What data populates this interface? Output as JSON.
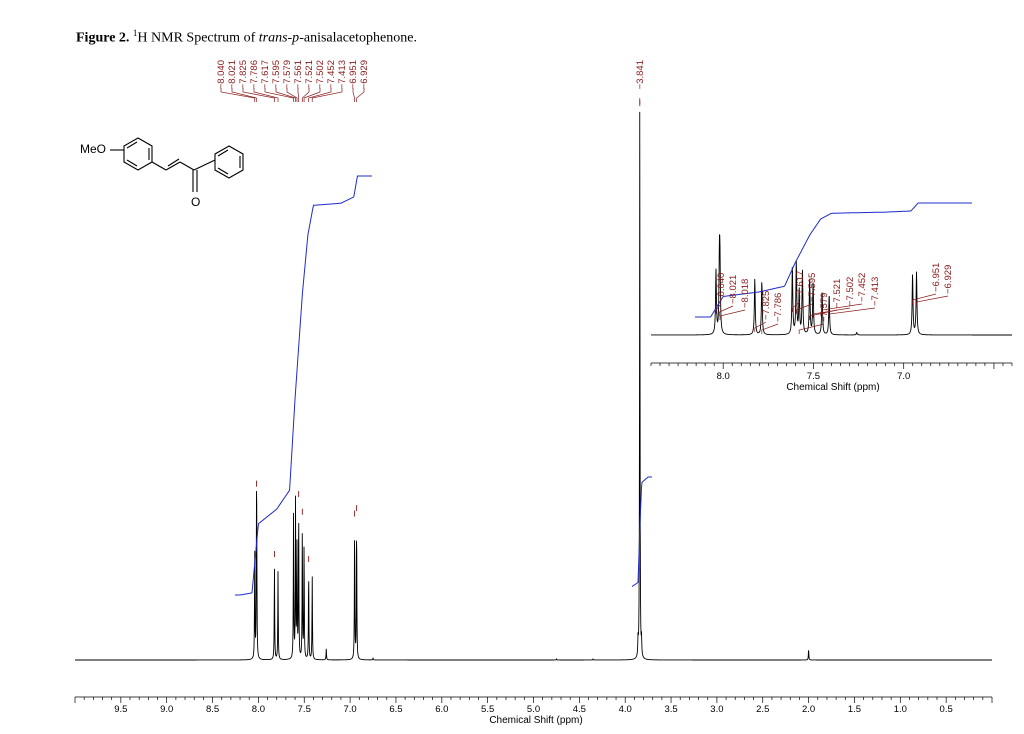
{
  "figure": {
    "label": "Figure 2.",
    "superscript": "1",
    "text_before_italic": "H NMR Spectrum of ",
    "italic_text": "trans-p",
    "text_after_italic": "-anisalacetophenone."
  },
  "structure": {
    "substituent_label": "MeO",
    "carbonyl_label": "O"
  },
  "chart_data": [
    {
      "type": "line",
      "name": "main-spectrum",
      "xlabel": "Chemical Shift (ppm)",
      "ylabel": "",
      "xlim": [
        10.0,
        0.0
      ],
      "x_reversed": true,
      "tick_labels": [
        "9.5",
        "9.0",
        "8.5",
        "8.0",
        "7.5",
        "7.0",
        "6.5",
        "6.0",
        "5.5",
        "5.0",
        "4.5",
        "4.0",
        "3.5",
        "3.0",
        "2.5",
        "2.0",
        "1.5",
        "1.0",
        "0.5"
      ],
      "peak_labels": [
        "8.040",
        "8.021",
        "7.825",
        "7.786",
        "7.617",
        "7.595",
        "7.579",
        "7.561",
        "7.521",
        "7.502",
        "7.452",
        "7.413",
        "6.951",
        "6.929",
        "3.841"
      ],
      "peaks": [
        {
          "ppm": 8.04,
          "intensity": 0.19
        },
        {
          "ppm": 8.021,
          "intensity": 0.21
        },
        {
          "ppm": 8.018,
          "intensity": 0.18
        },
        {
          "ppm": 7.825,
          "intensity": 0.17
        },
        {
          "ppm": 7.786,
          "intensity": 0.16
        },
        {
          "ppm": 7.617,
          "intensity": 0.26
        },
        {
          "ppm": 7.595,
          "intensity": 0.29
        },
        {
          "ppm": 7.579,
          "intensity": 0.2
        },
        {
          "ppm": 7.561,
          "intensity": 0.27
        },
        {
          "ppm": 7.521,
          "intensity": 0.24
        },
        {
          "ppm": 7.502,
          "intensity": 0.21
        },
        {
          "ppm": 7.452,
          "intensity": 0.16
        },
        {
          "ppm": 7.413,
          "intensity": 0.15
        },
        {
          "ppm": 6.951,
          "intensity": 0.24
        },
        {
          "ppm": 6.929,
          "intensity": 0.25
        },
        {
          "ppm": 3.86,
          "intensity": 0.03
        },
        {
          "ppm": 3.841,
          "intensity": 1.0
        },
        {
          "ppm": 3.822,
          "intensity": 0.03
        },
        {
          "ppm": 2.0,
          "intensity": 0.02
        },
        {
          "ppm": 7.26,
          "intensity": 0.02
        },
        {
          "ppm": 6.75,
          "intensity": 0.004
        },
        {
          "ppm": 4.75,
          "intensity": 0.002
        },
        {
          "ppm": 4.35,
          "intensity": 0.002
        }
      ],
      "integral_curve": [
        [
          8.2,
          0.0
        ],
        [
          8.07,
          0.005
        ],
        [
          8.0,
          0.17
        ],
        [
          7.8,
          0.205
        ],
        [
          7.66,
          0.25
        ],
        [
          7.6,
          0.47
        ],
        [
          7.52,
          0.72
        ],
        [
          7.46,
          0.86
        ],
        [
          7.4,
          0.93
        ],
        [
          7.1,
          0.935
        ],
        [
          6.96,
          0.95
        ],
        [
          6.92,
          1.0
        ],
        [
          6.85,
          1.0
        ]
      ],
      "integral_curve_2": [
        [
          3.95,
          0.0
        ],
        [
          3.86,
          0.05
        ],
        [
          3.84,
          0.55
        ],
        [
          3.82,
          0.95
        ],
        [
          3.75,
          1.0
        ]
      ]
    },
    {
      "type": "line",
      "name": "inset-spectrum",
      "xlabel": "Chemical Shift (ppm)",
      "ylabel": "",
      "xlim": [
        8.4,
        6.4
      ],
      "x_reversed": true,
      "tick_labels": [
        "8.0",
        "7.5",
        "7.0"
      ],
      "peak_labels": [
        "8.040",
        "8.021",
        "8.018",
        "7.825",
        "7.786",
        "7.617",
        "7.595",
        "7.579",
        "7.521",
        "7.502",
        "7.452",
        "7.413",
        "6.951",
        "6.929"
      ],
      "peaks": [
        {
          "ppm": 8.04,
          "intensity": 0.8
        },
        {
          "ppm": 8.021,
          "intensity": 0.85
        },
        {
          "ppm": 8.018,
          "intensity": 0.75
        },
        {
          "ppm": 7.825,
          "intensity": 0.7
        },
        {
          "ppm": 7.786,
          "intensity": 0.67
        },
        {
          "ppm": 7.617,
          "intensity": 0.85
        },
        {
          "ppm": 7.595,
          "intensity": 0.9
        },
        {
          "ppm": 7.579,
          "intensity": 0.55
        },
        {
          "ppm": 7.561,
          "intensity": 0.8
        },
        {
          "ppm": 7.521,
          "intensity": 0.7
        },
        {
          "ppm": 7.502,
          "intensity": 0.65
        },
        {
          "ppm": 7.452,
          "intensity": 0.55
        },
        {
          "ppm": 7.413,
          "intensity": 0.5
        },
        {
          "ppm": 6.951,
          "intensity": 0.75
        },
        {
          "ppm": 6.929,
          "intensity": 0.78
        },
        {
          "ppm": 7.26,
          "intensity": 0.03
        }
      ],
      "integral_curve": [
        [
          8.4,
          0.0
        ],
        [
          8.07,
          0.0
        ],
        [
          8.0,
          0.18
        ],
        [
          7.8,
          0.22
        ],
        [
          7.66,
          0.27
        ],
        [
          7.6,
          0.48
        ],
        [
          7.52,
          0.72
        ],
        [
          7.46,
          0.86
        ],
        [
          7.4,
          0.91
        ],
        [
          7.1,
          0.92
        ],
        [
          6.96,
          0.93
        ],
        [
          6.92,
          1.0
        ],
        [
          6.75,
          1.0
        ]
      ]
    }
  ],
  "colors": {
    "spectrum": "#000000",
    "integral": "#1f2cc8",
    "peak_label": "#8b1a1a"
  }
}
